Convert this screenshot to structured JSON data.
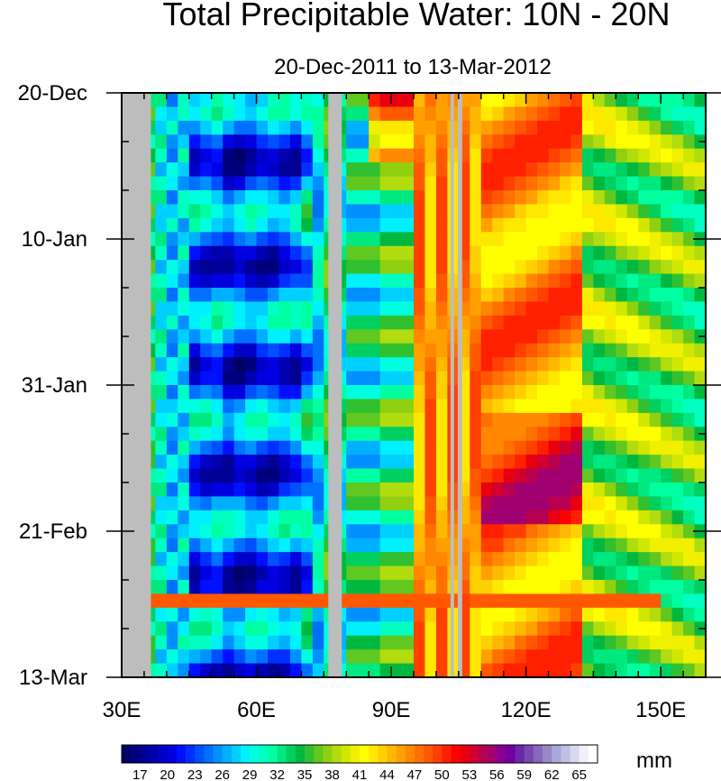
{
  "chart_data": {
    "type": "heatmap",
    "title": "Total Precipitable Water: 10N - 20N",
    "subtitle": "20-Dec-2011 to 13-Mar-2012",
    "x_axis": {
      "range": [
        30,
        160
      ],
      "ticks": [
        30,
        60,
        90,
        120,
        150
      ],
      "tick_labels": [
        "30E",
        "60E",
        "90E",
        "120E",
        "150E"
      ],
      "minor_step": 5
    },
    "y_axis": {
      "range_days": [
        0,
        84
      ],
      "ticks_days": [
        0,
        21,
        42,
        63,
        84
      ],
      "tick_labels": [
        "20-Dec",
        "10-Jan",
        "31-Jan",
        "21-Feb",
        "13-Mar"
      ],
      "minor_step_days": 7,
      "reversed": true
    },
    "missing_bands_lon": [
      [
        30,
        36.5
      ],
      [
        76,
        79
      ],
      [
        103.2,
        104
      ],
      [
        104.8,
        105.8
      ]
    ],
    "colorbar": {
      "unit": "mm",
      "levels": [
        15,
        16,
        17,
        18,
        19,
        20,
        21,
        22,
        23,
        24,
        25,
        26,
        27,
        28,
        29,
        30,
        31,
        32,
        33,
        34,
        35,
        36,
        37,
        38,
        39,
        40,
        41,
        42,
        43,
        44,
        45,
        46,
        47,
        48,
        49,
        50,
        51,
        52,
        53,
        54,
        55,
        56,
        57,
        58,
        59,
        60,
        61,
        62,
        63,
        64,
        65,
        66
      ],
      "labels": [
        "17",
        "20",
        "23",
        "26",
        "29",
        "32",
        "35",
        "38",
        "41",
        "44",
        "47",
        "50",
        "53",
        "56",
        "59",
        "62",
        "65"
      ],
      "label_values": [
        17,
        20,
        23,
        26,
        29,
        32,
        35,
        38,
        41,
        44,
        47,
        50,
        53,
        56,
        59,
        62,
        65
      ],
      "colors": [
        "#000066",
        "#00007d",
        "#000095",
        "#0000ae",
        "#0000c8",
        "#0000e1",
        "#0010ff",
        "#0030ff",
        "#0050ff",
        "#0070ff",
        "#0090ff",
        "#00b0ff",
        "#00d0ff",
        "#00f0ff",
        "#00ffe0",
        "#00ffc0",
        "#00ffa0",
        "#00e880",
        "#00d060",
        "#00b840",
        "#30c030",
        "#60c820",
        "#90d010",
        "#b0dc10",
        "#d0e800",
        "#f0f000",
        "#ffff00",
        "#ffe800",
        "#ffd000",
        "#ffb800",
        "#ffa000",
        "#ff8800",
        "#ff7000",
        "#ff5800",
        "#ff4000",
        "#ff2000",
        "#ff0000",
        "#e80010",
        "#d00030",
        "#b80050",
        "#a00070",
        "#880090",
        "#7000a0",
        "#6828a8",
        "#7848b0",
        "#8868b8",
        "#9888c8",
        "#a8a8d8",
        "#c0c0e4",
        "#d8d8f0",
        "#f0f0fa",
        "#ffffff"
      ]
    }
  }
}
